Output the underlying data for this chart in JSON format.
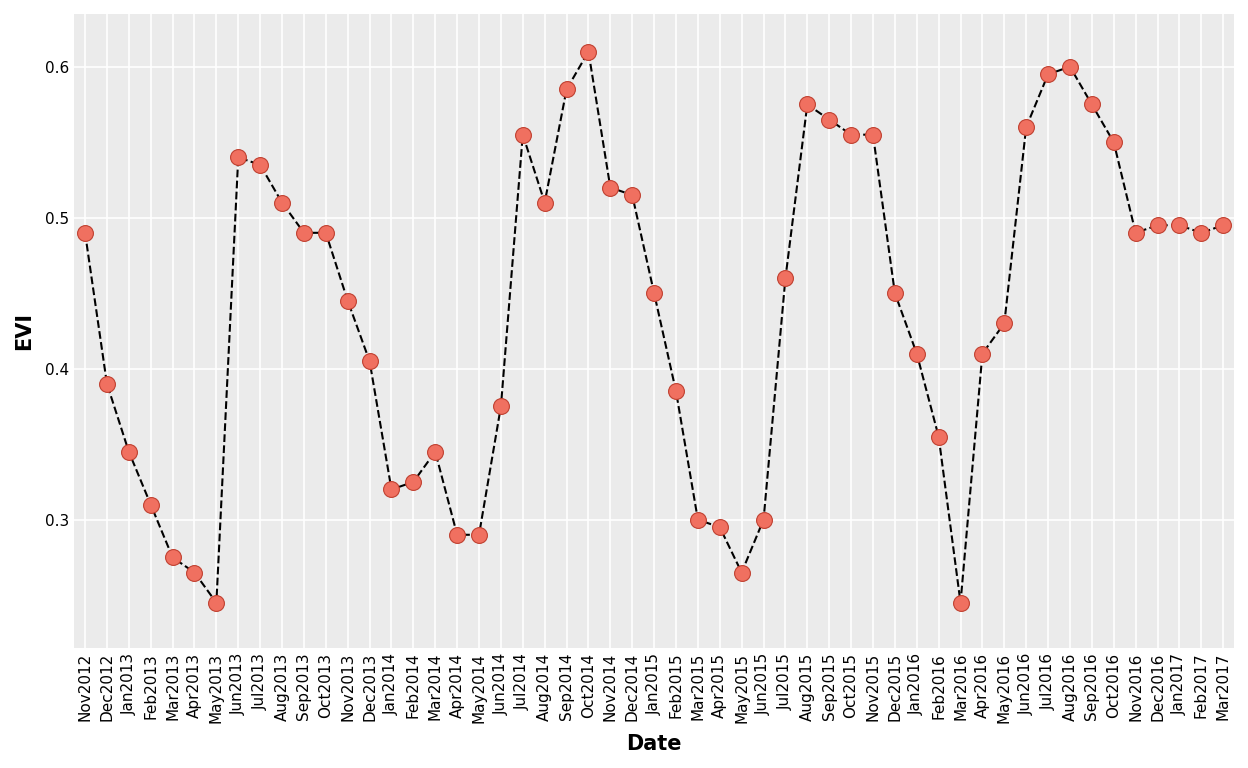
{
  "dates": [
    "Nov2012",
    "Dec2012",
    "Jan2013",
    "Feb2013",
    "Mar2013",
    "Apr2013",
    "May2013",
    "Jun2013",
    "Jul2013",
    "Aug2013",
    "Sep2013",
    "Oct2013",
    "Nov2013",
    "Dec2013",
    "Jan2014",
    "Feb2014",
    "Mar2014",
    "Apr2014",
    "May2014",
    "Jun2014",
    "Jul2014",
    "Aug2014",
    "Sep2014",
    "Oct2014",
    "Nov2014",
    "Dec2014",
    "Jan2015",
    "Feb2015",
    "Mar2015",
    "Apr2015",
    "May2015",
    "Jun2015",
    "Jul2015",
    "Aug2015",
    "Sep2015",
    "Oct2015",
    "Nov2015",
    "Dec2015",
    "Jan2016",
    "Feb2016",
    "Mar2016",
    "Apr2016",
    "May2016",
    "Jun2016",
    "Jul2016",
    "Aug2016",
    "Sep2016",
    "Oct2016",
    "Nov2016",
    "Dec2016",
    "Jan2017",
    "Feb2017",
    "Mar2017"
  ],
  "values": [
    0.49,
    0.39,
    0.345,
    0.31,
    0.275,
    0.265,
    0.245,
    0.54,
    0.535,
    0.51,
    0.49,
    0.49,
    0.445,
    0.405,
    0.32,
    0.325,
    0.345,
    0.29,
    0.29,
    0.375,
    0.555,
    0.51,
    0.585,
    0.61,
    0.52,
    0.515,
    0.45,
    0.385,
    0.3,
    0.295,
    0.265,
    0.3,
    0.46,
    0.575,
    0.565,
    0.555,
    0.555,
    0.45,
    0.41,
    0.355,
    0.245,
    0.41,
    0.43,
    0.56,
    0.595,
    0.6,
    0.575,
    0.55,
    0.49,
    0.495,
    0.495,
    0.49,
    0.495
  ],
  "line_color": "#000000",
  "marker_facecolor": "#F07060",
  "marker_edgecolor": "#C04030",
  "marker_size": 130,
  "line_style": "--",
  "line_width": 1.5,
  "xlabel": "Date",
  "ylabel": "EVI",
  "ylim": [
    0.215,
    0.635
  ],
  "yticks": [
    0.3,
    0.4,
    0.5,
    0.6
  ],
  "panel_background": "#EBEBEB",
  "outer_background": "#FFFFFF",
  "grid_color": "#FFFFFF",
  "grid_linewidth": 1.2,
  "axis_label_fontsize": 15,
  "tick_fontsize": 11
}
